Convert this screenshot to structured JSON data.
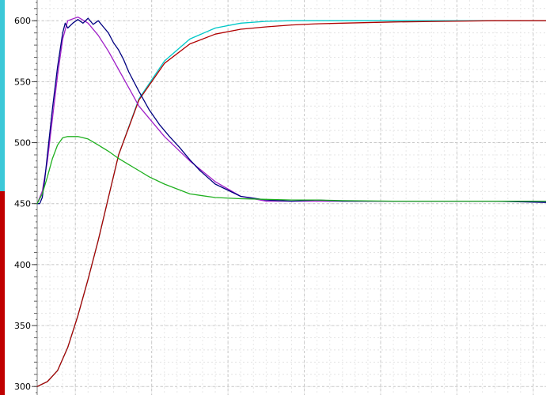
{
  "chart_data": {
    "type": "line",
    "title": "",
    "xlabel": "",
    "ylabel": "",
    "ylim": [
      293,
      617
    ],
    "yticks": [
      300,
      350,
      400,
      450,
      500,
      550,
      600
    ],
    "grid": true,
    "series": [
      {
        "color": "#00c8c8",
        "x": [
          0,
          2,
          4,
          6,
          8,
          10,
          12,
          14,
          16,
          20,
          25,
          30,
          35,
          40,
          45,
          50,
          55,
          60,
          70,
          80,
          90,
          100
        ],
        "values": [
          300,
          304,
          313,
          332,
          358,
          388,
          420,
          455,
          490,
          536,
          567,
          585,
          594,
          598,
          599.5,
          600,
          600,
          600,
          600,
          600,
          600,
          600
        ]
      },
      {
        "color": "#b00000",
        "x": [
          0,
          2,
          4,
          6,
          8,
          10,
          12,
          14,
          16,
          20,
          25,
          30,
          35,
          40,
          45,
          50,
          55,
          60,
          70,
          80,
          90,
          100
        ],
        "values": [
          300,
          304,
          313,
          332,
          358,
          388,
          420,
          455,
          490,
          535,
          565,
          581,
          589,
          593,
          595,
          596.5,
          597.5,
          598,
          599,
          599.5,
          600,
          600
        ]
      },
      {
        "color": "#a020c8",
        "x": [
          0,
          1,
          2,
          3,
          4,
          5,
          6,
          8,
          10,
          12,
          14,
          16,
          18,
          20,
          25,
          30,
          35,
          40,
          45,
          50,
          55,
          60,
          70,
          80,
          90,
          100
        ],
        "values": [
          450,
          460,
          485,
          520,
          555,
          585,
          600,
          603,
          598,
          588,
          575,
          560,
          545,
          530,
          505,
          485,
          468,
          456,
          452,
          452,
          452,
          452,
          452,
          452,
          452,
          452
        ]
      },
      {
        "color": "#000080",
        "x": [
          0,
          0.5,
          1,
          1.5,
          2,
          3,
          4,
          5,
          5.5,
          6,
          7,
          8,
          9,
          10,
          11,
          12,
          13,
          14,
          15,
          16,
          17,
          18,
          20,
          22,
          24,
          26,
          28,
          30,
          32,
          35,
          40,
          45,
          50,
          55,
          60,
          70,
          80,
          90,
          100
        ],
        "values": [
          450,
          450,
          455,
          470,
          490,
          528,
          562,
          590,
          598,
          594,
          598,
          601,
          598,
          602,
          597,
          600,
          595,
          590,
          582,
          576,
          568,
          558,
          542,
          527,
          515,
          505,
          496,
          486,
          477,
          466,
          456,
          453,
          452,
          453,
          452,
          452,
          452,
          452,
          451
        ]
      },
      {
        "color": "#20b020",
        "x": [
          0,
          1,
          2,
          3,
          4,
          5,
          6,
          8,
          10,
          12,
          14,
          16,
          18,
          20,
          22,
          25,
          30,
          35,
          40,
          45,
          50,
          55,
          60,
          70,
          80,
          90,
          100
        ],
        "values": [
          450,
          458,
          472,
          487,
          498,
          504,
          505,
          505,
          503,
          498,
          493,
          487,
          482,
          477,
          472,
          466,
          458,
          455,
          454,
          453.5,
          453,
          453,
          452.5,
          452,
          452,
          452,
          452
        ]
      }
    ]
  }
}
